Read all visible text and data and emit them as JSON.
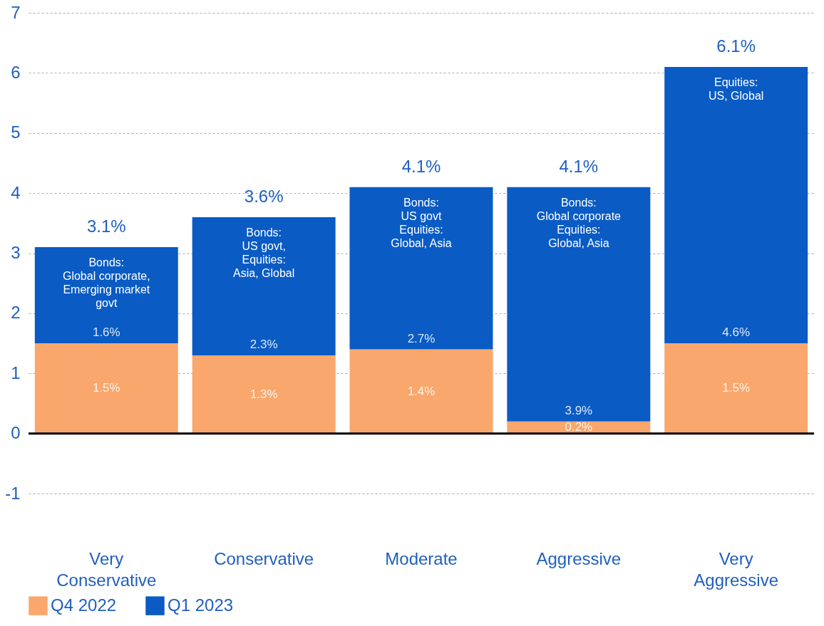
{
  "chart_data": {
    "type": "bar",
    "stacked": true,
    "categories": [
      "Very Conservative",
      "Conservative",
      "Moderate",
      "Aggressive",
      "Very Aggressive"
    ],
    "series": [
      {
        "name": "Q4 2022",
        "color": "#f9a76c",
        "values": [
          1.5,
          1.3,
          1.4,
          0.2,
          1.5
        ],
        "value_labels": [
          "1.5%",
          "1.3%",
          "1.4%",
          "0.2%",
          "1.5%"
        ]
      },
      {
        "name": "Q1 2023",
        "color": "#0a5bc4",
        "values": [
          1.6,
          2.3,
          2.7,
          3.9,
          4.6
        ],
        "value_labels": [
          "1.6%",
          "2.3%",
          "2.7%",
          "3.9%",
          "4.6%"
        ]
      }
    ],
    "totals": [
      "3.1%",
      "3.6%",
      "4.1%",
      "4.1%",
      "6.1%"
    ],
    "ylim": [
      -1,
      7
    ],
    "yticks": [
      -1,
      0,
      1,
      2,
      3,
      4,
      5,
      6,
      7
    ],
    "grid": "y",
    "legend": "bottom",
    "ref_lines": [
      {
        "axis": "y",
        "value": 0
      }
    ],
    "annotations": [
      "Bonds:\nGlobal corporate,\nEmerging market\ngovt",
      "Bonds:\nUS govt,\n\nEquities:\nAsia, Global",
      "Bonds:\nUS govt\n\nEquities:\nGlobal, Asia",
      "Bonds:\nGlobal corporate\n\nEquities:\nGlobal, Asia",
      "Equities:\nUS, Global"
    ]
  }
}
